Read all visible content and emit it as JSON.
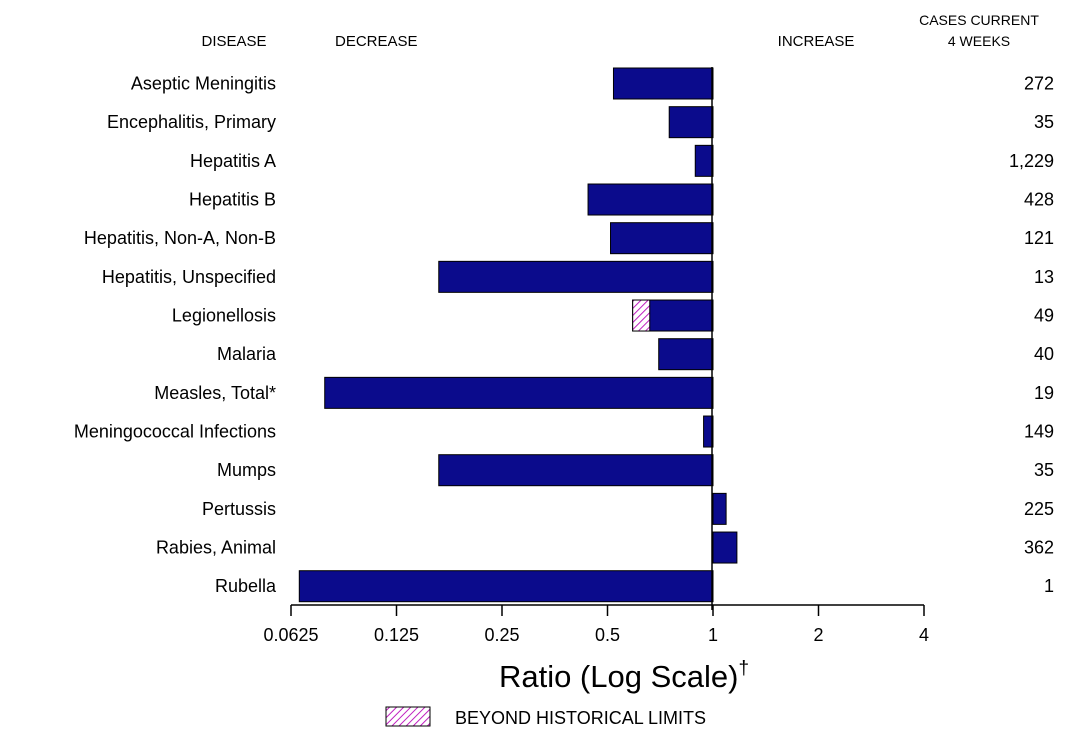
{
  "chart_data": {
    "type": "bar",
    "orientation": "horizontal",
    "scale": "log2",
    "headers": {
      "disease": "DISEASE",
      "decrease": "DECREASE",
      "increase": "INCREASE",
      "cases_line1": "CASES CURRENT",
      "cases_line2": "4 WEEKS"
    },
    "categories": [
      "Aseptic Meningitis",
      "Encephalitis, Primary",
      "Hepatitis A",
      "Hepatitis B",
      "Hepatitis, Non-A, Non-B",
      "Hepatitis, Unspecified",
      "Legionellosis",
      "Malaria",
      "Measles, Total*",
      "Meningococcal Infections",
      "Mumps",
      "Pertussis",
      "Rabies, Animal",
      "Rubella"
    ],
    "values": [
      0.52,
      0.75,
      0.89,
      0.44,
      0.51,
      0.165,
      0.59,
      0.7,
      0.078,
      0.94,
      0.165,
      1.09,
      1.17,
      0.066
    ],
    "beyond_limit_from": [
      null,
      null,
      null,
      null,
      null,
      null,
      0.66,
      null,
      null,
      null,
      null,
      null,
      null,
      null
    ],
    "cases": [
      "272",
      "35",
      "1,229",
      "428",
      "121",
      "13",
      "49",
      "40",
      "19",
      "149",
      "35",
      "225",
      "362",
      "1"
    ],
    "xticks": [
      0.0625,
      0.125,
      0.25,
      0.5,
      1,
      2,
      4
    ],
    "xtick_labels": [
      "0.0625",
      "0.125",
      "0.25",
      "0.5",
      "1",
      "2",
      "4"
    ],
    "xlim": [
      0.0625,
      4
    ],
    "xlabel": "Ratio (Log Scale)",
    "xlabel_sup": "†",
    "legend": [
      {
        "name": "BEYOND HISTORICAL LIMITS",
        "pattern": "hatched"
      }
    ],
    "legend_position": "bottom-center",
    "colors": {
      "bar": "#0b0b8c",
      "hatch": "#c020c0",
      "axis": "#000000"
    }
  }
}
